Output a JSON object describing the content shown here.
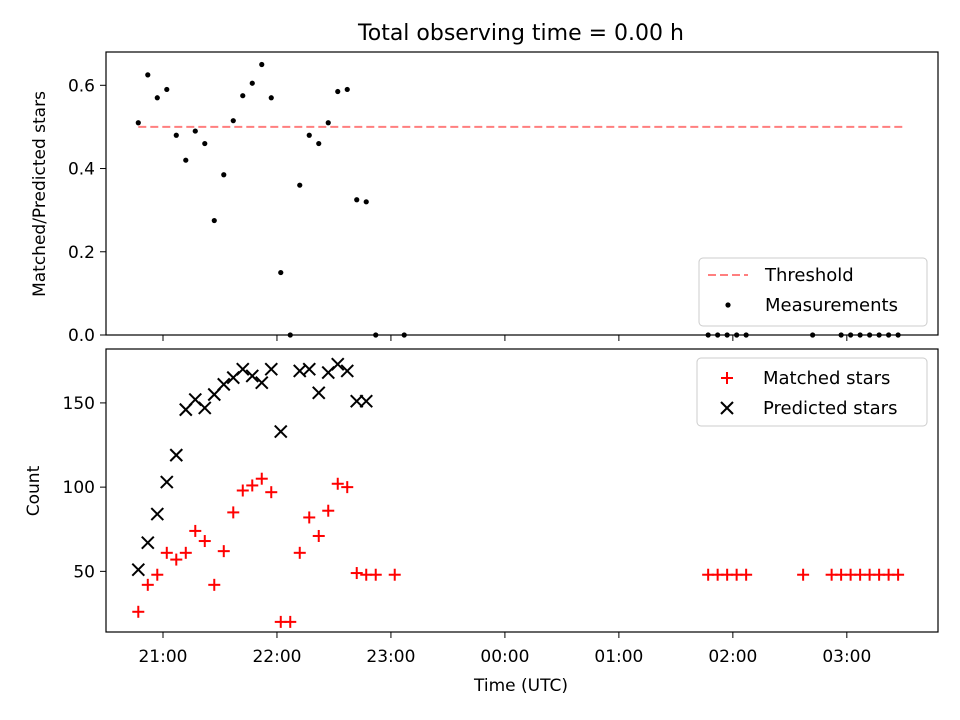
{
  "chart_data": {
    "title": "Total observing time = 0.00 h",
    "xlabel": "Time (UTC)",
    "xticks": [
      "21:00",
      "22:00",
      "23:00",
      "00:00",
      "01:00",
      "02:00",
      "03:00"
    ],
    "xlim_hours": [
      20.5,
      27.8
    ],
    "panels": [
      {
        "type": "scatter",
        "ylabel": "Matched/Predicted stars",
        "ylim": [
          0.0,
          0.68
        ],
        "yticks": [
          0.0,
          0.2,
          0.4,
          0.6
        ],
        "ytick_labels": [
          "0.0",
          "0.2",
          "0.4",
          "0.6"
        ],
        "legend_position": "lower-right",
        "threshold": {
          "name": "Threshold",
          "value": 0.5,
          "x_range": [
            "20:47",
            "03:30"
          ],
          "color": "#ff7f7f"
        },
        "series": [
          {
            "name": "Measurements",
            "color": "#000000",
            "x": [
              "20:47",
              "20:52",
              "20:57",
              "21:02",
              "21:07",
              "21:12",
              "21:17",
              "21:22",
              "21:27",
              "21:32",
              "21:37",
              "21:42",
              "21:47",
              "21:52",
              "21:57",
              "22:02",
              "22:07",
              "22:12",
              "22:17",
              "22:22",
              "22:27",
              "22:32",
              "22:37",
              "22:42",
              "22:47",
              "22:52",
              "23:07",
              "01:47",
              "01:52",
              "01:57",
              "02:02",
              "02:07",
              "02:42",
              "02:57",
              "03:02",
              "03:07",
              "03:12",
              "03:17",
              "03:22",
              "03:27"
            ],
            "y": [
              0.51,
              0.625,
              0.57,
              0.59,
              0.48,
              0.42,
              0.49,
              0.46,
              0.275,
              0.385,
              0.515,
              0.575,
              0.605,
              0.65,
              0.57,
              0.15,
              0.0,
              0.36,
              0.48,
              0.46,
              0.51,
              0.585,
              0.59,
              0.325,
              0.32,
              0.0,
              0.0,
              0.0,
              0.0,
              0.0,
              0.0,
              0.0,
              0.0,
              0.0,
              0.0,
              0.0,
              0.0,
              0.0,
              0.0,
              0.0
            ]
          }
        ]
      },
      {
        "type": "scatter",
        "ylabel": "Count",
        "ylim": [
          14,
          182
        ],
        "yticks": [
          50,
          100,
          150
        ],
        "ytick_labels": [
          "50",
          "100",
          "150"
        ],
        "legend_position": "upper-right",
        "series": [
          {
            "name": "Matched stars",
            "marker": "+",
            "color": "#ff0000",
            "x": [
              "20:47",
              "20:52",
              "20:57",
              "21:02",
              "21:07",
              "21:12",
              "21:17",
              "21:22",
              "21:27",
              "21:32",
              "21:37",
              "21:42",
              "21:47",
              "21:52",
              "21:57",
              "22:02",
              "22:07",
              "22:12",
              "22:17",
              "22:22",
              "22:27",
              "22:32",
              "22:37",
              "22:42",
              "22:47",
              "22:52",
              "23:02",
              "01:47",
              "01:52",
              "01:57",
              "02:02",
              "02:07",
              "02:37",
              "02:52",
              "02:57",
              "03:02",
              "03:07",
              "03:12",
              "03:17",
              "03:22",
              "03:27"
            ],
            "y": [
              26,
              42,
              48,
              61,
              57,
              61,
              74,
              68,
              42,
              62,
              85,
              98,
              101,
              105,
              97,
              20,
              20,
              61,
              82,
              71,
              86,
              102,
              100,
              49,
              48,
              48,
              48,
              48,
              48,
              48,
              48,
              48,
              48,
              48,
              48,
              48,
              48,
              48,
              48,
              48,
              48
            ]
          },
          {
            "name": "Predicted stars",
            "marker": "x",
            "color": "#000000",
            "x": [
              "20:47",
              "20:52",
              "20:57",
              "21:02",
              "21:07",
              "21:12",
              "21:17",
              "21:22",
              "21:27",
              "21:32",
              "21:37",
              "21:42",
              "21:47",
              "21:52",
              "21:57",
              "22:02",
              "22:12",
              "22:17",
              "22:22",
              "22:27",
              "22:32",
              "22:37",
              "22:42",
              "22:47"
            ],
            "y": [
              51,
              67,
              84,
              103,
              119,
              146,
              152,
              147,
              155,
              161,
              165,
              170,
              166,
              162,
              170,
              133,
              169,
              170,
              156,
              168,
              173,
              169,
              151,
              151
            ]
          }
        ]
      }
    ]
  }
}
